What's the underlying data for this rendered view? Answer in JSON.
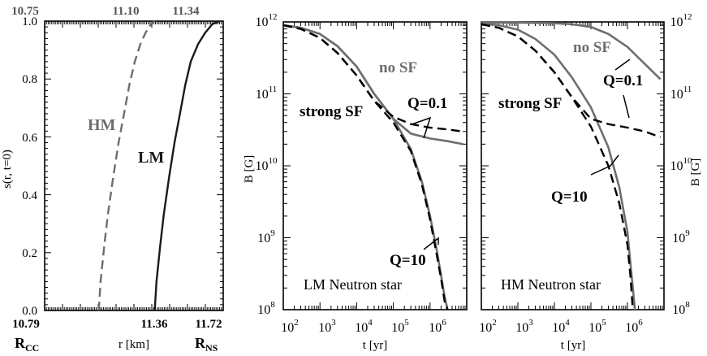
{
  "chart_data": [
    {
      "type": "line",
      "panel": "left",
      "ylabel": "s(r, t=0)",
      "xlabel": "r [km]",
      "ylim": [
        0,
        1.0
      ],
      "yticks": [
        "0.0",
        "0.2",
        "0.4",
        "0.6",
        "0.8",
        "1.0"
      ],
      "xlim": [
        10.75,
        11.74
      ],
      "bottom_tick_labels": [
        "10.79",
        "11.36",
        "11.72"
      ],
      "bottom_edge_labels": [
        {
          "main": "R",
          "sub": "CC"
        },
        {
          "main": "R",
          "sub": "NS"
        }
      ],
      "top_tick_labels": [
        "10.75",
        "11.10",
        "11.34"
      ],
      "series": [
        {
          "name": "HM",
          "style": "dashed",
          "color": "#6e6e6e",
          "x": [
            11.05,
            11.06,
            11.08,
            11.1,
            11.13,
            11.16,
            11.19,
            11.22,
            11.25,
            11.28,
            11.31,
            11.34,
            11.36
          ],
          "y": [
            0.0,
            0.1,
            0.22,
            0.33,
            0.46,
            0.58,
            0.68,
            0.78,
            0.86,
            0.92,
            0.96,
            0.99,
            1.0
          ]
        },
        {
          "name": "LM",
          "style": "solid",
          "color": "#1a1a1a",
          "x": [
            11.36,
            11.37,
            11.39,
            11.41,
            11.44,
            11.47,
            11.5,
            11.53,
            11.56,
            11.6,
            11.64,
            11.68,
            11.72
          ],
          "y": [
            0.0,
            0.1,
            0.22,
            0.33,
            0.46,
            0.58,
            0.68,
            0.78,
            0.86,
            0.92,
            0.96,
            0.99,
            1.0
          ]
        }
      ]
    },
    {
      "type": "line",
      "panel": "middle",
      "title": "LM Neutron star",
      "ylabel": "B [G]",
      "xlabel": "t [yr]",
      "y_scale": "log",
      "x_scale": "log",
      "ylim": [
        100000000.0,
        1000000000000.0
      ],
      "xlim": [
        100.0,
        10000000.0
      ],
      "y_exponents": [
        8,
        9,
        10,
        11,
        12
      ],
      "x_exponents": [
        2,
        3,
        4,
        5,
        6
      ],
      "series": [
        {
          "name": "no SF, Q=0.1",
          "style": "solid",
          "color": "#6e6e6e",
          "x": [
            100,
            300,
            1000,
            3000,
            10000,
            30000,
            100000,
            300000,
            1000000,
            3000000,
            8000000
          ],
          "y": [
            900000000000.0,
            830000000000.0,
            680000000000.0,
            460000000000.0,
            240000000000.0,
            100000000000.0,
            45000000000.0,
            28000000000.0,
            24000000000.0,
            22000000000.0,
            20000000000.0
          ]
        },
        {
          "name": "no SF, Q=10",
          "style": "solid",
          "color": "#6e6e6e",
          "x": [
            100,
            300,
            1000,
            3000,
            10000,
            30000,
            100000,
            300000,
            600000,
            1000000,
            1500000,
            2000000,
            2500000,
            3000000
          ],
          "y": [
            900000000000.0,
            830000000000.0,
            680000000000.0,
            460000000000.0,
            240000000000.0,
            100000000000.0,
            45000000000.0,
            17000000000.0,
            6000000000.0,
            2000000000.0,
            700000000.0,
            300000000.0,
            150000000.0,
            100000000.0
          ]
        },
        {
          "name": "strong SF, Q=0.1",
          "style": "dashed",
          "color": "#000000",
          "x": [
            100,
            300,
            1000,
            3000,
            10000,
            30000,
            100000,
            300000,
            1000000,
            3000000,
            8000000
          ],
          "y": [
            900000000000.0,
            800000000000.0,
            600000000000.0,
            370000000000.0,
            180000000000.0,
            80000000000.0,
            48000000000.0,
            38000000000.0,
            34000000000.0,
            32000000000.0,
            30000000000.0
          ]
        },
        {
          "name": "strong SF, Q=10",
          "style": "dashed",
          "color": "#000000",
          "x": [
            100,
            300,
            1000,
            3000,
            10000,
            30000,
            100000,
            300000,
            600000,
            1000000,
            1500000,
            2000000,
            2500000,
            3000000
          ],
          "y": [
            900000000000.0,
            800000000000.0,
            600000000000.0,
            370000000000.0,
            180000000000.0,
            80000000000.0,
            40000000000.0,
            16000000000.0,
            5500000000.0,
            1800000000.0,
            600000000.0,
            270000000.0,
            130000000.0,
            100000000.0
          ]
        }
      ],
      "annotations": [
        "no SF",
        "strong SF",
        "Q=0.1",
        "Q=10"
      ]
    },
    {
      "type": "line",
      "panel": "right",
      "title": "HM Neutron star",
      "ylabel": "B [G]",
      "xlabel": "t [yr]",
      "y_scale": "log",
      "x_scale": "log",
      "ylim": [
        100000000.0,
        1000000000000.0
      ],
      "xlim": [
        100.0,
        10000000.0
      ],
      "y_exponents": [
        8,
        9,
        10,
        11,
        12
      ],
      "x_exponents": [
        2,
        3,
        4,
        5,
        6
      ],
      "series": [
        {
          "name": "no SF, Q=0.1",
          "style": "solid",
          "color": "#6e6e6e",
          "x": [
            100,
            1000,
            10000,
            30000,
            100000,
            300000,
            1000000,
            3000000,
            8000000
          ],
          "y": [
            980000000000.0,
            980000000000.0,
            960000000000.0,
            930000000000.0,
            850000000000.0,
            680000000000.0,
            450000000000.0,
            260000000000.0,
            160000000000.0
          ]
        },
        {
          "name": "no SF, Q=10",
          "style": "solid",
          "color": "#6e6e6e",
          "x": [
            100,
            300,
            1000,
            3000,
            10000,
            30000,
            100000,
            300000,
            600000,
            1000000,
            1300000,
            1600000
          ],
          "y": [
            950000000000.0,
            900000000000.0,
            780000000000.0,
            580000000000.0,
            350000000000.0,
            170000000000.0,
            65000000000.0,
            18000000000.0,
            5000000000.0,
            1200000000.0,
            300000000.0,
            100000000.0
          ]
        },
        {
          "name": "strong SF, Q=0.1",
          "style": "dashed",
          "color": "#000000",
          "x": [
            100,
            300,
            1000,
            3000,
            10000,
            30000,
            100000,
            300000,
            1000000,
            3000000,
            8000000
          ],
          "y": [
            930000000000.0,
            830000000000.0,
            630000000000.0,
            400000000000.0,
            200000000000.0,
            90000000000.0,
            45000000000.0,
            38000000000.0,
            34000000000.0,
            30000000000.0,
            25000000000.0
          ]
        },
        {
          "name": "strong SF, Q=10",
          "style": "dashed",
          "color": "#000000",
          "x": [
            100,
            300,
            1000,
            3000,
            10000,
            30000,
            100000,
            300000,
            600000,
            1000000,
            1200000,
            1400000
          ],
          "y": [
            930000000000.0,
            830000000000.0,
            630000000000.0,
            400000000000.0,
            200000000000.0,
            90000000000.0,
            35000000000.0,
            10000000000.0,
            3000000000.0,
            800000000.0,
            300000000.0,
            100000000.0
          ]
        }
      ],
      "annotations": [
        "no SF",
        "strong SF",
        "Q=0.1",
        "Q=10"
      ]
    }
  ]
}
